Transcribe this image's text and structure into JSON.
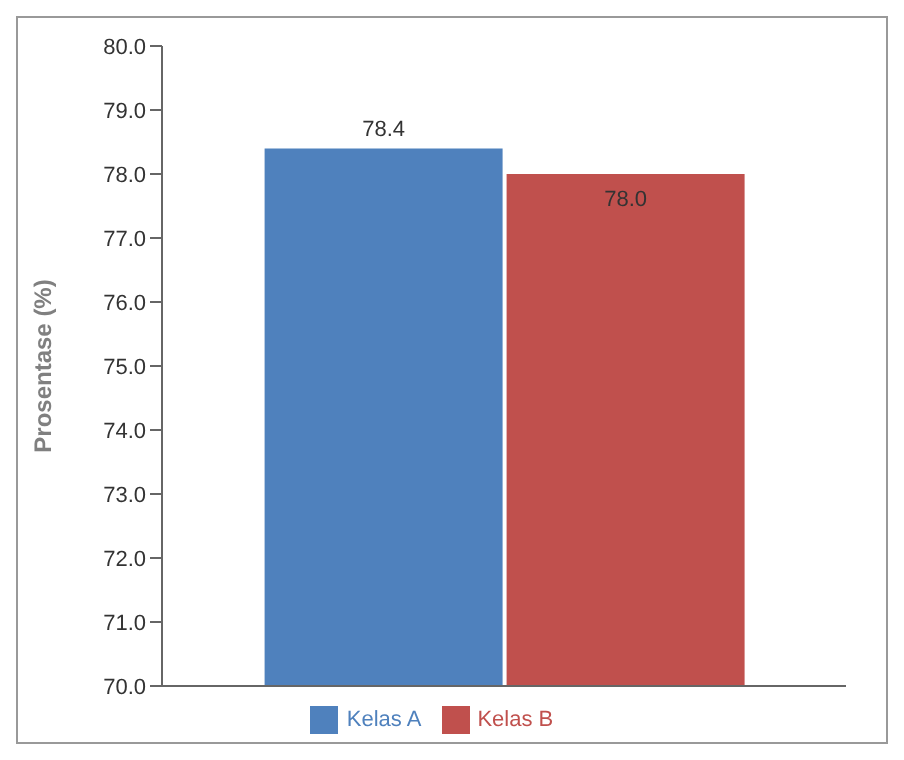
{
  "chart_data": {
    "type": "bar",
    "ylabel": "Prosentase (%)",
    "categories": [
      null
    ],
    "series": [
      {
        "name": "Kelas A",
        "color": "#4f81bd",
        "values": [
          78.4
        ],
        "value_labels": [
          "78.4"
        ]
      },
      {
        "name": "Kelas B",
        "color": "#c0504d",
        "values": [
          78.0
        ],
        "value_labels": [
          "78.0"
        ]
      }
    ],
    "ylim": [
      70,
      80
    ],
    "yticks": [
      {
        "value": 70,
        "label": "70.0"
      },
      {
        "value": 71,
        "label": "71.0"
      },
      {
        "value": 72,
        "label": "72.0"
      },
      {
        "value": 73,
        "label": "73.0"
      },
      {
        "value": 74,
        "label": "74.0"
      },
      {
        "value": 75,
        "label": "75.0"
      },
      {
        "value": 76,
        "label": "76.0"
      },
      {
        "value": 77,
        "label": "77.0"
      },
      {
        "value": 78,
        "label": "78.0"
      },
      {
        "value": 79,
        "label": "79.0"
      },
      {
        "value": 80,
        "label": "80.0"
      }
    ],
    "grid": false,
    "legend": "bottom"
  }
}
